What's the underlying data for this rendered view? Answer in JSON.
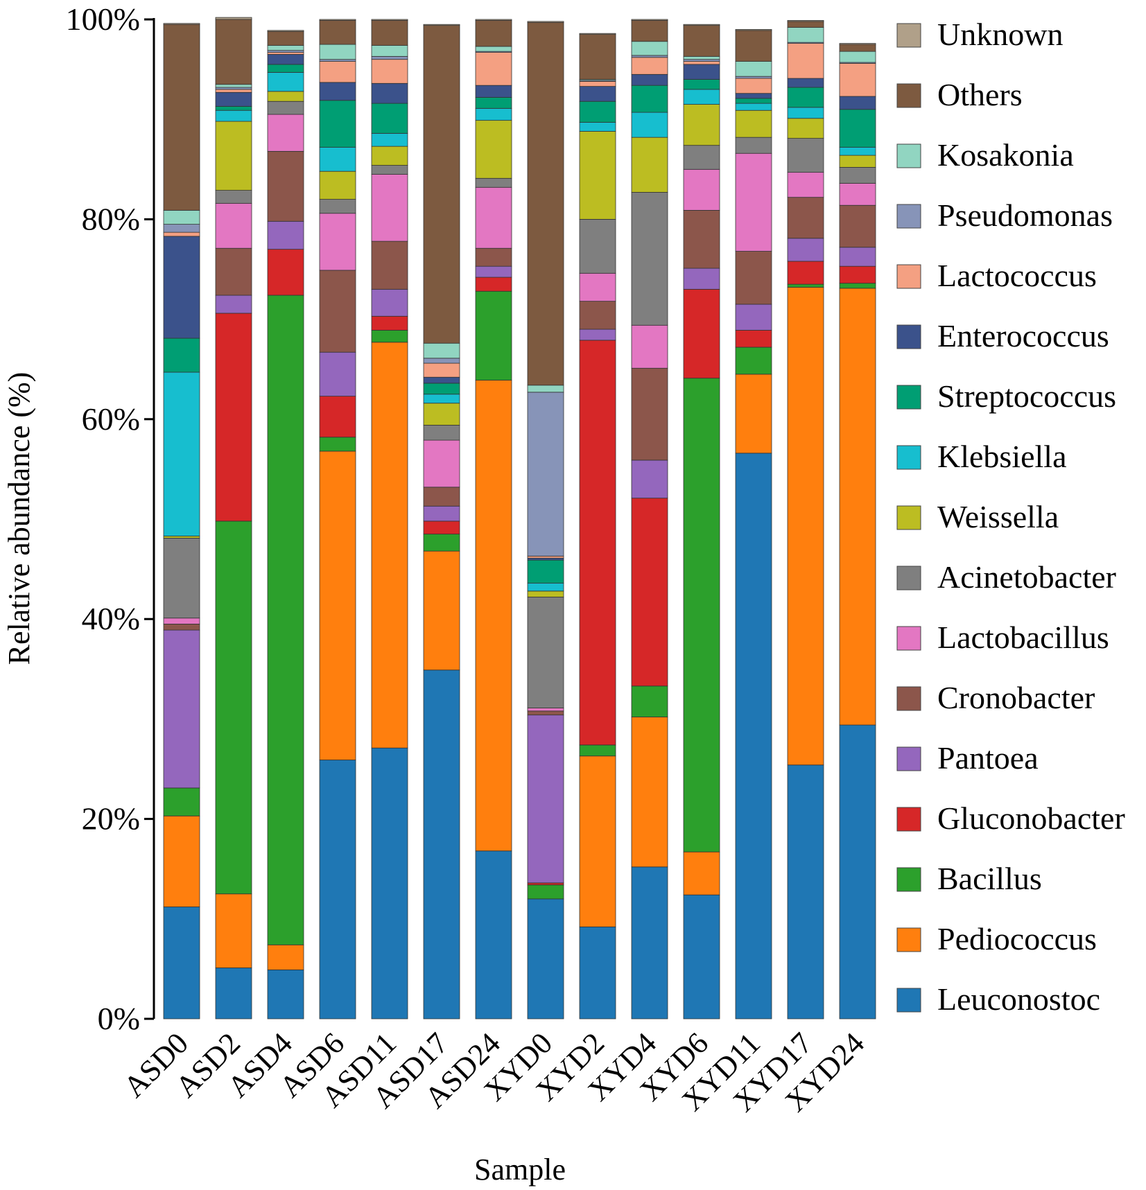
{
  "chart_data": {
    "type": "bar",
    "stacked": true,
    "title": "",
    "xlabel": "Sample",
    "ylabel": "Relative abundance (%)",
    "ylim": [
      0,
      100
    ],
    "yticks": [
      "0%",
      "20%",
      "40%",
      "60%",
      "80%",
      "100%"
    ],
    "categories": [
      "ASD0",
      "ASD2",
      "ASD4",
      "ASD6",
      "ASD11",
      "ASD17",
      "ASD24",
      "XYD0",
      "XYD2",
      "XYD4",
      "XYD6",
      "XYD11",
      "XYD17",
      "XYD24"
    ],
    "legend_position": "right",
    "series": [
      {
        "name": "Leuconostoc",
        "color": "#1f77b4",
        "values": [
          11.2,
          5.1,
          4.9,
          25.9,
          27.1,
          34.9,
          16.8,
          12.0,
          9.2,
          15.2,
          12.4,
          56.6,
          25.4,
          29.4
        ]
      },
      {
        "name": "Pediococcus",
        "color": "#ff7f0e",
        "values": [
          9.1,
          7.4,
          2.5,
          30.9,
          40.6,
          11.9,
          47.1,
          0.0,
          17.1,
          15.0,
          4.3,
          7.9,
          47.8,
          43.7
        ]
      },
      {
        "name": "Bacillus",
        "color": "#2ca02c",
        "values": [
          2.8,
          37.3,
          65.0,
          1.4,
          1.2,
          1.7,
          8.9,
          1.4,
          1.1,
          3.1,
          47.4,
          2.7,
          0.3,
          0.5
        ]
      },
      {
        "name": "Gluconobacter",
        "color": "#d62728",
        "values": [
          0.0,
          20.8,
          4.6,
          4.1,
          1.4,
          1.3,
          1.4,
          0.2,
          40.5,
          18.8,
          8.9,
          1.7,
          2.3,
          1.7
        ]
      },
      {
        "name": "Pantoea",
        "color": "#9467bd",
        "values": [
          15.8,
          1.8,
          2.8,
          4.4,
          2.7,
          1.5,
          1.1,
          16.8,
          1.1,
          3.8,
          2.1,
          2.6,
          2.3,
          1.9
        ]
      },
      {
        "name": "Cronobacter",
        "color": "#8c564b",
        "values": [
          0.6,
          4.7,
          7.0,
          8.2,
          4.8,
          1.9,
          1.8,
          0.4,
          2.8,
          9.2,
          5.8,
          5.3,
          4.1,
          4.2
        ]
      },
      {
        "name": "Lactobacillus",
        "color": "#e377c2",
        "values": [
          0.6,
          4.5,
          3.7,
          5.7,
          6.7,
          4.7,
          6.1,
          0.3,
          2.8,
          4.3,
          4.1,
          9.8,
          2.5,
          2.2
        ]
      },
      {
        "name": "Acinetobacter",
        "color": "#7f7f7f",
        "values": [
          8.0,
          1.3,
          1.3,
          1.4,
          0.9,
          1.5,
          0.9,
          11.1,
          5.4,
          13.3,
          2.4,
          1.6,
          3.4,
          1.6
        ]
      },
      {
        "name": "Weissella",
        "color": "#bcbd22",
        "values": [
          0.2,
          6.9,
          1.0,
          2.8,
          1.9,
          2.2,
          5.8,
          0.6,
          8.8,
          5.5,
          4.1,
          2.7,
          2.0,
          1.2
        ]
      },
      {
        "name": "Klebsiella",
        "color": "#17becf",
        "values": [
          16.4,
          1.1,
          1.9,
          2.4,
          1.3,
          0.9,
          1.2,
          0.8,
          0.9,
          2.5,
          1.5,
          0.7,
          1.1,
          0.8
        ]
      },
      {
        "name": "Streptococcus",
        "color": "#009e73",
        "values": [
          3.4,
          0.4,
          0.8,
          4.7,
          3.0,
          1.1,
          1.1,
          2.3,
          2.1,
          2.7,
          1.0,
          0.5,
          2.0,
          3.8
        ]
      },
      {
        "name": "Enterococcus",
        "color": "#3b528b",
        "values": [
          10.2,
          1.4,
          1.0,
          1.8,
          2.0,
          0.6,
          1.2,
          0.2,
          1.5,
          1.1,
          1.5,
          0.5,
          0.9,
          1.3
        ]
      },
      {
        "name": "Lactococcus",
        "color": "#f4a082",
        "values": [
          0.4,
          0.3,
          0.2,
          2.1,
          2.4,
          1.4,
          3.3,
          0.2,
          0.5,
          1.7,
          0.3,
          1.5,
          3.5,
          3.3
        ]
      },
      {
        "name": "Pseudomonas",
        "color": "#8794b8",
        "values": [
          0.8,
          0.2,
          0.2,
          0.2,
          0.3,
          0.5,
          0.1,
          16.4,
          0.1,
          0.2,
          0.2,
          0.2,
          0.1,
          0.1
        ]
      },
      {
        "name": "Kosakonia",
        "color": "#91d5c1",
        "values": [
          1.4,
          0.3,
          0.5,
          1.5,
          1.1,
          1.5,
          0.5,
          0.7,
          0.1,
          1.4,
          0.3,
          1.5,
          1.5,
          1.1
        ]
      },
      {
        "name": "Others",
        "color": "#7d5a40",
        "values": [
          18.6,
          6.5,
          1.4,
          2.4,
          2.5,
          31.8,
          2.6,
          36.3,
          4.5,
          2.1,
          3.1,
          3.1,
          0.6,
          0.7
        ]
      },
      {
        "name": "Unknown",
        "color": "#b0a089",
        "values": [
          0.1,
          0.2,
          0.1,
          0.1,
          0.1,
          0.1,
          0.1,
          0.1,
          0.1,
          0.1,
          0.1,
          0.1,
          0.1,
          0.1
        ]
      }
    ]
  }
}
